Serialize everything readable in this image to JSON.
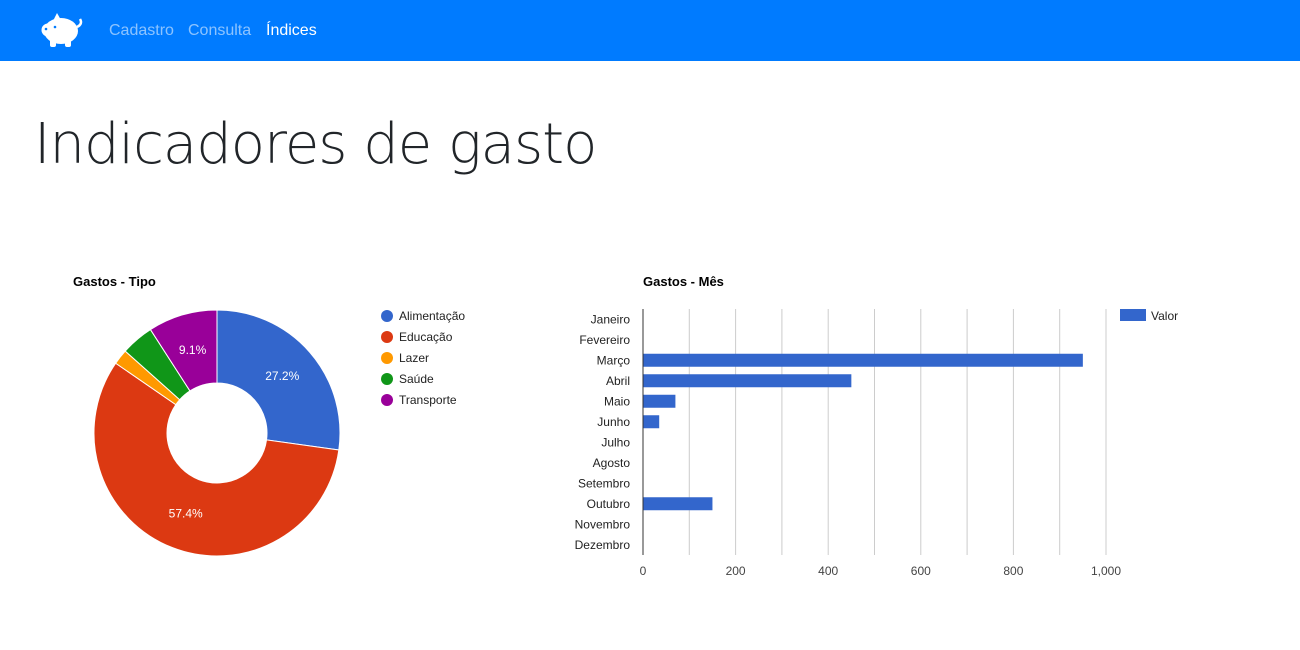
{
  "navbar": {
    "brand_icon": "piggy-bank-icon",
    "links": [
      {
        "label": "Cadastro",
        "active": false
      },
      {
        "label": "Consulta",
        "active": false
      },
      {
        "label": "Índices",
        "active": true
      }
    ]
  },
  "page": {
    "title": "Indicadores de gasto"
  },
  "colors": {
    "navbar": "#007bff",
    "alimentacao": "#3366cc",
    "educacao": "#dc3912",
    "lazer": "#ff9900",
    "saude": "#109618",
    "transporte": "#990099",
    "bar": "#3366cc"
  },
  "chart_data": [
    {
      "type": "pie",
      "donut": true,
      "title": "Gastos - Tipo",
      "legend": "right",
      "slices": [
        {
          "label": "Alimentação",
          "value": 27.2,
          "color": "#3366cc",
          "display": "27.2%"
        },
        {
          "label": "Educação",
          "value": 57.4,
          "color": "#dc3912",
          "display": "57.4%"
        },
        {
          "label": "Lazer",
          "value": 2.0,
          "color": "#ff9900",
          "display": ""
        },
        {
          "label": "Saúde",
          "value": 4.3,
          "color": "#109618",
          "display": ""
        },
        {
          "label": "Transporte",
          "value": 9.1,
          "color": "#990099",
          "display": "9.1%"
        }
      ]
    },
    {
      "type": "bar",
      "orientation": "horizontal",
      "title": "Gastos - Mês",
      "legend": "top-right",
      "categories": [
        "Janeiro",
        "Fevereiro",
        "Março",
        "Abril",
        "Maio",
        "Junho",
        "Julho",
        "Agosto",
        "Setembro",
        "Outubro",
        "Novembro",
        "Dezembro"
      ],
      "series": [
        {
          "name": "Valor",
          "color": "#3366cc",
          "values": [
            0,
            0,
            950,
            450,
            70,
            35,
            0,
            0,
            0,
            150,
            0,
            0
          ]
        }
      ],
      "xlim": [
        0,
        1000
      ],
      "ticks": [
        0,
        200,
        400,
        600,
        800,
        1000
      ],
      "tick_labels": [
        "0",
        "200",
        "400",
        "600",
        "800",
        "1,000"
      ],
      "grid": true
    }
  ]
}
